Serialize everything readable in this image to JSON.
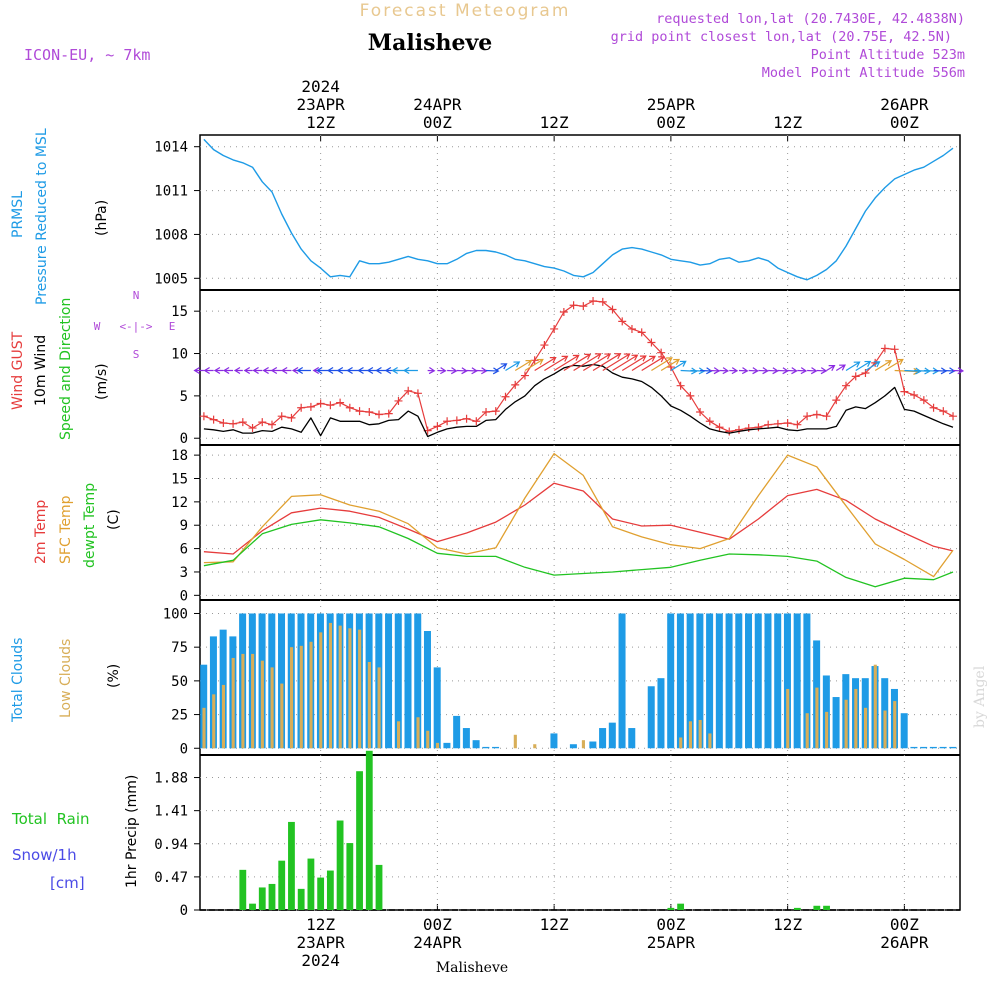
{
  "header": {
    "product_title": "Forecast Meteogram",
    "location": "Malisheve",
    "model": "ICON-EU, ~ 7km",
    "requested": "requested lon,lat (20.7430E, 42.4838N)",
    "gridpoint": "grid point closest lon,lat (20.75E, 42.5N)",
    "point_alt": "Point Altitude 523m",
    "model_alt": "Model Point Altitude 556m",
    "footer_location": "Malisheve",
    "credit": "by Angel"
  },
  "colors": {
    "pressure": "#1e9be6",
    "gust": "#e63c3c",
    "wind": "#000000",
    "dir_label": "#b04ad8",
    "temp2m": "#e63c3c",
    "sfc": "#e0a030",
    "dewpt": "#22c322",
    "total_clouds": "#1e9be6",
    "low_clouds": "#d8ae58",
    "rain": "#22c322",
    "snow": "#4a4ae6"
  },
  "time_axis": {
    "top_labels": [
      {
        "hour": 12,
        "lines": [
          "2024",
          "23APR",
          "12Z"
        ]
      },
      {
        "hour": 24,
        "lines": [
          "24APR",
          "00Z"
        ]
      },
      {
        "hour": 36,
        "lines": [
          "12Z"
        ]
      },
      {
        "hour": 48,
        "lines": [
          "25APR",
          "00Z"
        ]
      },
      {
        "hour": 60,
        "lines": [
          "12Z"
        ]
      },
      {
        "hour": 72,
        "lines": [
          "26APR",
          "00Z"
        ]
      }
    ],
    "bottom_labels": [
      {
        "hour": 12,
        "lines": [
          "12Z",
          "23APR",
          "2024"
        ]
      },
      {
        "hour": 24,
        "lines": [
          "00Z",
          "24APR"
        ]
      },
      {
        "hour": 36,
        "lines": [
          "12Z"
        ]
      },
      {
        "hour": 48,
        "lines": [
          "00Z",
          "25APR"
        ]
      },
      {
        "hour": 60,
        "lines": [
          "12Z"
        ]
      },
      {
        "hour": 72,
        "lines": [
          "00Z",
          "26APR"
        ]
      }
    ],
    "hours_note": "hours since 23APR 00Z"
  },
  "panels": {
    "pressure": {
      "labels": [
        "PRMSL",
        "Pressure Reduced to MSL"
      ],
      "unit": "(hPa)"
    },
    "wind": {
      "labels": [
        "Wind GUST",
        "10m Wind",
        "Speed and Direction"
      ],
      "unit": "(m/s)",
      "compass": {
        "n": "N",
        "e": "E",
        "s": "S",
        "w": "W"
      }
    },
    "temp": {
      "labels": [
        "2m Temp",
        "SFC Temp",
        "dewpt Temp"
      ],
      "unit": "(C)"
    },
    "clouds": {
      "labels": [
        "Total Clouds",
        "Low Clouds"
      ],
      "unit": "(%)"
    },
    "precip": {
      "labels": [
        "Total  Rain",
        "Snow/1h",
        "[cm]"
      ],
      "unit": "1hr Precip (mm)"
    }
  },
  "chart_data": [
    {
      "type": "line",
      "name": "pressure",
      "ylabel": "(hPa)",
      "ylim": [
        1004.2,
        1014.8
      ],
      "yticks": [
        1005,
        1008,
        1011,
        1014
      ],
      "grid": true,
      "series": [
        {
          "name": "PRMSL",
          "x": [
            0,
            1,
            2,
            3,
            4,
            5,
            6,
            7,
            8,
            9,
            10,
            11,
            12,
            13,
            14,
            15,
            16,
            17,
            18,
            19,
            20,
            21,
            22,
            23,
            24,
            25,
            26,
            27,
            28,
            29,
            30,
            31,
            32,
            33,
            34,
            35,
            36,
            37,
            38,
            39,
            40,
            41,
            42,
            43,
            44,
            45,
            46,
            47,
            48,
            49,
            50,
            51,
            52,
            53,
            54,
            55,
            56,
            57,
            58,
            59,
            60,
            61,
            62,
            63,
            64,
            65,
            66,
            67,
            68,
            69,
            70,
            71,
            72,
            73,
            74,
            75,
            76,
            77
          ],
          "y": [
            1014.5,
            1013.8,
            1013.4,
            1013.1,
            1012.9,
            1012.6,
            1011.6,
            1010.9,
            1009.4,
            1008.1,
            1007.0,
            1006.2,
            1005.7,
            1005.1,
            1005.2,
            1005.1,
            1006.2,
            1006.0,
            1006.0,
            1006.1,
            1006.3,
            1006.5,
            1006.3,
            1006.2,
            1006.0,
            1006.0,
            1006.3,
            1006.7,
            1006.9,
            1006.9,
            1006.8,
            1006.6,
            1006.3,
            1006.2,
            1006.0,
            1005.8,
            1005.7,
            1005.5,
            1005.2,
            1005.1,
            1005.4,
            1006.0,
            1006.6,
            1007.0,
            1007.1,
            1007.0,
            1006.8,
            1006.6,
            1006.3,
            1006.2,
            1006.1,
            1005.9,
            1006.0,
            1006.3,
            1006.4,
            1006.1,
            1006.2,
            1006.4,
            1006.2,
            1005.7,
            1005.4,
            1005.1,
            1004.9,
            1005.2,
            1005.6,
            1006.2,
            1007.2,
            1008.4,
            1009.6,
            1010.5,
            1011.2,
            1011.8,
            1012.1,
            1012.4,
            1012.6,
            1013.0,
            1013.4,
            1013.9
          ]
        }
      ]
    },
    {
      "type": "line",
      "name": "wind",
      "ylabel": "(m/s)",
      "ylim": [
        -0.8,
        17.5
      ],
      "yticks": [
        0,
        5,
        10,
        15
      ],
      "grid": true,
      "series": [
        {
          "name": "Wind GUST",
          "x": [
            0,
            1,
            2,
            3,
            4,
            5,
            6,
            7,
            8,
            9,
            10,
            11,
            12,
            13,
            14,
            15,
            16,
            17,
            18,
            19,
            20,
            21,
            22,
            23,
            24,
            25,
            26,
            27,
            28,
            29,
            30,
            31,
            32,
            33,
            34,
            35,
            36,
            37,
            38,
            39,
            40,
            41,
            42,
            43,
            44,
            45,
            46,
            47,
            48,
            49,
            50,
            51,
            52,
            53,
            54,
            55,
            56,
            57,
            58,
            59,
            60,
            61,
            62,
            63,
            64,
            65,
            66,
            67,
            68,
            69,
            70,
            71,
            72,
            73,
            74,
            75,
            76,
            77
          ],
          "y": [
            2.6,
            2.2,
            1.8,
            1.7,
            1.9,
            1.2,
            1.9,
            1.6,
            2.6,
            2.4,
            3.6,
            3.7,
            4.1,
            3.9,
            4.2,
            3.6,
            3.2,
            3.1,
            2.8,
            2.9,
            4.4,
            5.6,
            5.3,
            0.9,
            1.4,
            2.0,
            2.1,
            2.3,
            2.0,
            3.1,
            3.2,
            4.9,
            6.3,
            7.4,
            9.2,
            11.0,
            12.9,
            14.9,
            15.7,
            15.6,
            16.2,
            16.1,
            15.2,
            13.8,
            12.9,
            12.5,
            11.3,
            10.1,
            8.4,
            6.2,
            5.0,
            3.1,
            2.0,
            1.3,
            0.8,
            1.0,
            1.2,
            1.3,
            1.6,
            1.7,
            1.8,
            1.6,
            2.6,
            2.8,
            2.6,
            4.5,
            6.2,
            7.3,
            7.7,
            8.9,
            10.6,
            10.5,
            5.5,
            5.1,
            4.5,
            3.6,
            3.2,
            2.6
          ]
        },
        {
          "name": "10m Wind",
          "x": [
            0,
            1,
            2,
            3,
            4,
            5,
            6,
            7,
            8,
            9,
            10,
            11,
            12,
            13,
            14,
            15,
            16,
            17,
            18,
            19,
            20,
            21,
            22,
            23,
            24,
            25,
            26,
            27,
            28,
            29,
            30,
            31,
            32,
            33,
            34,
            35,
            36,
            37,
            38,
            39,
            40,
            41,
            42,
            43,
            44,
            45,
            46,
            47,
            48,
            49,
            50,
            51,
            52,
            53,
            54,
            55,
            56,
            57,
            58,
            59,
            60,
            61,
            62,
            63,
            64,
            65,
            66,
            67,
            68,
            69,
            70,
            71,
            72,
            73,
            74,
            75,
            76,
            77
          ],
          "y": [
            1.1,
            1.0,
            0.8,
            1.0,
            0.6,
            0.6,
            0.9,
            0.8,
            1.3,
            1.1,
            0.7,
            2.4,
            0.3,
            2.4,
            2.0,
            2.0,
            2.0,
            1.6,
            1.7,
            2.1,
            2.2,
            3.2,
            2.6,
            0.2,
            0.7,
            1.1,
            1.3,
            1.4,
            1.4,
            2.1,
            2.2,
            3.4,
            4.3,
            5.0,
            6.2,
            7.0,
            7.6,
            8.3,
            8.6,
            8.5,
            8.7,
            8.5,
            7.7,
            7.2,
            7.0,
            6.7,
            6.0,
            5.0,
            3.8,
            3.3,
            2.6,
            1.8,
            1.1,
            0.8,
            0.6,
            0.8,
            1.0,
            1.1,
            1.2,
            1.3,
            1.0,
            0.9,
            1.1,
            1.1,
            1.1,
            1.4,
            3.3,
            3.7,
            3.5,
            4.2,
            5.0,
            6.0,
            3.4,
            3.2,
            2.7,
            2.2,
            1.7,
            1.3
          ]
        }
      ],
      "direction_arrow_colors": [
        "#8a2be2",
        "#1e50e6",
        "#1e9be6",
        "#e0a030",
        "#e63c3c"
      ]
    },
    {
      "type": "line",
      "name": "temperature",
      "ylabel": "(C)",
      "ylim": [
        -0.6,
        19.3
      ],
      "yticks": [
        0,
        3,
        6,
        9,
        12,
        15,
        18
      ],
      "grid": true,
      "series": [
        {
          "name": "2m Temp",
          "x": [
            0,
            3,
            6,
            9,
            12,
            15,
            18,
            21,
            24,
            27,
            30,
            33,
            36,
            39,
            42,
            45,
            48,
            51,
            54,
            57,
            60,
            63,
            66,
            69,
            72,
            75,
            77
          ],
          "y": [
            5.6,
            5.3,
            8.3,
            10.6,
            11.2,
            10.8,
            10.0,
            8.5,
            6.9,
            8.0,
            9.4,
            11.6,
            14.4,
            13.4,
            9.8,
            8.9,
            9.0,
            8.1,
            7.2,
            9.8,
            12.8,
            13.6,
            12.2,
            9.8,
            8.0,
            6.3,
            5.7
          ]
        },
        {
          "name": "SFC Temp",
          "x": [
            0,
            3,
            6,
            9,
            12,
            15,
            18,
            21,
            24,
            27,
            30,
            33,
            36,
            39,
            42,
            45,
            48,
            51,
            54,
            57,
            60,
            63,
            66,
            69,
            72,
            75,
            77
          ],
          "y": [
            4.2,
            4.3,
            8.8,
            12.7,
            12.9,
            11.6,
            10.8,
            9.2,
            6.1,
            5.3,
            6.1,
            12.5,
            18.2,
            15.4,
            8.8,
            7.5,
            6.5,
            6.0,
            7.3,
            12.8,
            18.0,
            16.5,
            11.5,
            6.6,
            4.6,
            2.4,
            5.8
          ]
        },
        {
          "name": "dewpt Temp",
          "x": [
            0,
            3,
            6,
            9,
            12,
            15,
            18,
            21,
            24,
            27,
            30,
            33,
            36,
            39,
            42,
            45,
            48,
            51,
            54,
            57,
            60,
            63,
            66,
            69,
            72,
            75,
            77
          ],
          "y": [
            3.8,
            4.5,
            7.9,
            9.1,
            9.7,
            9.3,
            8.8,
            7.3,
            5.4,
            5.0,
            5.0,
            3.6,
            2.6,
            2.8,
            3.0,
            3.3,
            3.6,
            4.5,
            5.3,
            5.2,
            5.0,
            4.4,
            2.3,
            1.1,
            2.2,
            2.0,
            3.0
          ]
        }
      ]
    },
    {
      "type": "bar",
      "name": "clouds",
      "ylabel": "(%)",
      "ylim": [
        -5,
        110
      ],
      "yticks": [
        0,
        25,
        50,
        75,
        100
      ],
      "grid": true,
      "x": [
        0,
        1,
        2,
        3,
        4,
        5,
        6,
        7,
        8,
        9,
        10,
        11,
        12,
        13,
        14,
        15,
        16,
        17,
        18,
        19,
        20,
        21,
        22,
        23,
        24,
        25,
        26,
        27,
        28,
        29,
        30,
        31,
        32,
        33,
        34,
        35,
        36,
        37,
        38,
        39,
        40,
        41,
        42,
        43,
        44,
        45,
        46,
        47,
        48,
        49,
        50,
        51,
        52,
        53,
        54,
        55,
        56,
        57,
        58,
        59,
        60,
        61,
        62,
        63,
        64,
        65,
        66,
        67,
        68,
        69,
        70,
        71,
        72,
        73,
        74,
        75,
        76,
        77
      ],
      "series": [
        {
          "name": "Total Clouds",
          "values": [
            62,
            83,
            88,
            83,
            100,
            100,
            100,
            100,
            100,
            100,
            100,
            100,
            100,
            100,
            100,
            100,
            100,
            100,
            100,
            100,
            100,
            100,
            100,
            87,
            60,
            4,
            24,
            15,
            6,
            1,
            1,
            0,
            0,
            0,
            0,
            0,
            11,
            0,
            3,
            0,
            5,
            15,
            19,
            100,
            15,
            0,
            46,
            52,
            100,
            100,
            100,
            100,
            100,
            100,
            100,
            100,
            100,
            100,
            100,
            100,
            100,
            100,
            100,
            80,
            54,
            38,
            55,
            52,
            52,
            61,
            52,
            44,
            26,
            1,
            1,
            1,
            1,
            1
          ]
        },
        {
          "name": "Low Clouds",
          "values": [
            30,
            40,
            47,
            67,
            70,
            70,
            65,
            60,
            48,
            75,
            76,
            79,
            86,
            93,
            91,
            89,
            88,
            64,
            60,
            0,
            20,
            0,
            23,
            13,
            4,
            0,
            0,
            0,
            0,
            0,
            0,
            0,
            10,
            0,
            3,
            0,
            0,
            0,
            0,
            6,
            0,
            0,
            0,
            0,
            0,
            0,
            0,
            0,
            0,
            8,
            20,
            21,
            11,
            0,
            0,
            0,
            0,
            0,
            0,
            0,
            44,
            0,
            26,
            45,
            27,
            0,
            36,
            44,
            30,
            62,
            28,
            35,
            0,
            0,
            0,
            0,
            0,
            0
          ]
        }
      ]
    },
    {
      "type": "bar",
      "name": "precipitation",
      "ylabel": "1hr Precip (mm)",
      "ylim": [
        0,
        2.2
      ],
      "yticks": [
        0,
        0.47,
        0.94,
        1.41,
        1.88
      ],
      "grid": true,
      "series": [
        {
          "name": "Total Rain",
          "x": [
            4,
            5,
            6,
            7,
            8,
            9,
            10,
            11,
            12,
            13,
            14,
            15,
            16,
            17,
            18,
            19,
            48,
            49,
            61,
            63,
            64
          ],
          "values": [
            0.57,
            0.09,
            0.32,
            0.37,
            0.7,
            1.25,
            0.3,
            0.73,
            0.46,
            0.56,
            1.27,
            0.95,
            1.97,
            2.26,
            0.64,
            0.0,
            0.03,
            0.09,
            0.03,
            0.06,
            0.06
          ]
        }
      ]
    }
  ]
}
